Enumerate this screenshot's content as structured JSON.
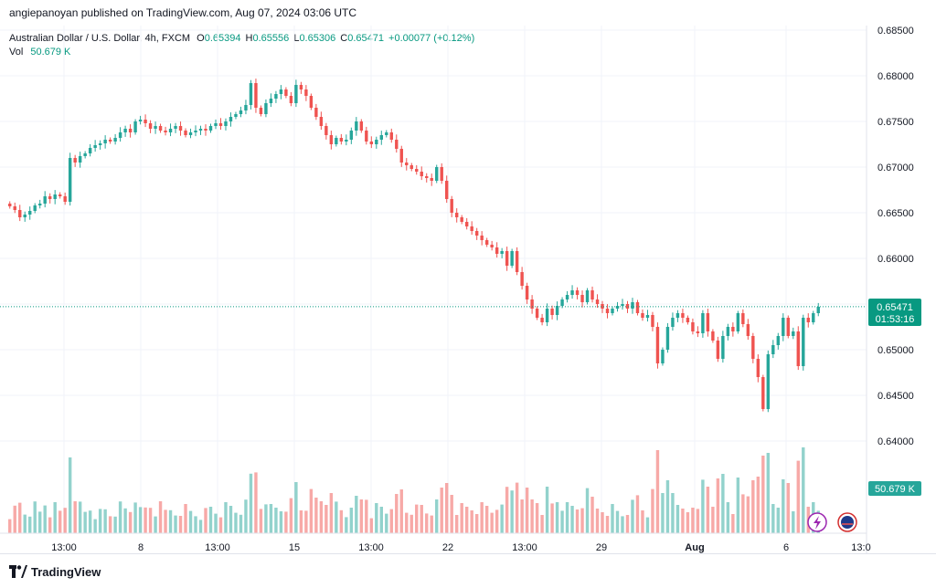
{
  "header": {
    "publisher_line": "angiepanoyan published on TradingView.com, Aug 07, 2024 03:06 UTC"
  },
  "legend": {
    "symbol": "Australian Dollar / U.S. Dollar, 4h, FXCM",
    "o_label": "O",
    "o_value": "0.65394",
    "h_label": "H",
    "h_value": "0.65556",
    "l_label": "L",
    "l_value": "0.65306",
    "c_label": "C",
    "c_value": "0.65471",
    "change": "+0.00077 (+0.12%)",
    "vol_label": "Vol",
    "vol_value": "50.679 K"
  },
  "footer": {
    "brand": "TradingView"
  },
  "colors": {
    "up": "#26a69a",
    "down": "#ef5350",
    "up_text": "#089981",
    "grid": "#f0f3fa"
  },
  "chart_data": {
    "type": "candlestick",
    "symbol": "Australian Dollar / U.S. Dollar",
    "interval": "4h",
    "y_ticks": [
      "0.68500",
      "0.68000",
      "0.67500",
      "0.67000",
      "0.66500",
      "0.66000",
      "0.65500",
      "0.65000",
      "0.64500",
      "0.64000"
    ],
    "ylim": [
      0.635,
      0.6855
    ],
    "x_ticks": [
      "13:00",
      "8",
      "13:00",
      "15",
      "13:00",
      "22",
      "13:00",
      "29",
      "Aug",
      "6",
      "13:0"
    ],
    "last_price_label": "0.65471",
    "countdown_label": "01:53:16",
    "volume_label": "50.679 K",
    "close": [
      0.6657,
      0.6653,
      0.6645,
      0.6648,
      0.6652,
      0.6658,
      0.666,
      0.6668,
      0.6665,
      0.667,
      0.6668,
      0.6662,
      0.671,
      0.6705,
      0.6712,
      0.6715,
      0.6721,
      0.6724,
      0.6726,
      0.673,
      0.6728,
      0.6732,
      0.6738,
      0.6742,
      0.6738,
      0.675,
      0.6752,
      0.6748,
      0.6742,
      0.6745,
      0.674,
      0.6738,
      0.6742,
      0.6745,
      0.674,
      0.6735,
      0.6738,
      0.674,
      0.6742,
      0.674,
      0.6745,
      0.6748,
      0.6745,
      0.675,
      0.6755,
      0.6758,
      0.6762,
      0.6768,
      0.6792,
      0.6765,
      0.6758,
      0.677,
      0.6775,
      0.678,
      0.6785,
      0.6778,
      0.677,
      0.679,
      0.6785,
      0.6778,
      0.6765,
      0.6755,
      0.6745,
      0.6735,
      0.6725,
      0.6732,
      0.6728,
      0.673,
      0.674,
      0.675,
      0.674,
      0.6728,
      0.6725,
      0.673,
      0.6735,
      0.6738,
      0.673,
      0.672,
      0.6705,
      0.6702,
      0.6698,
      0.6695,
      0.669,
      0.6688,
      0.6685,
      0.67,
      0.6685,
      0.6665,
      0.665,
      0.6645,
      0.664,
      0.6635,
      0.663,
      0.6625,
      0.662,
      0.6615,
      0.6612,
      0.6605,
      0.6608,
      0.6592,
      0.6608,
      0.6585,
      0.657,
      0.6555,
      0.6545,
      0.6535,
      0.653,
      0.6545,
      0.6538,
      0.6548,
      0.6555,
      0.656,
      0.6565,
      0.656,
      0.6552,
      0.6565,
      0.6555,
      0.655,
      0.6545,
      0.654,
      0.6545,
      0.6548,
      0.655,
      0.6545,
      0.6552,
      0.654,
      0.6535,
      0.6538,
      0.6525,
      0.6485,
      0.65,
      0.6525,
      0.6535,
      0.654,
      0.6535,
      0.653,
      0.652,
      0.6518,
      0.654,
      0.652,
      0.651,
      0.649,
      0.6515,
      0.6525,
      0.652,
      0.654,
      0.6528,
      0.6515,
      0.649,
      0.647,
      0.6435,
      0.6495,
      0.6505,
      0.6515,
      0.6535,
      0.6515,
      0.652,
      0.6482,
      0.6535,
      0.653,
      0.654,
      0.6547
    ]
  }
}
